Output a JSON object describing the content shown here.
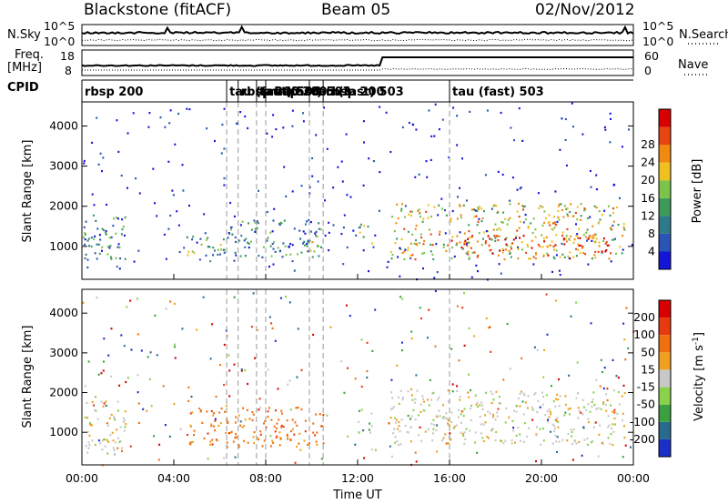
{
  "header": {
    "station": "Blackstone (fitACF)",
    "beam": "Beam 05",
    "date": "02/Nov/2012"
  },
  "top_panels": {
    "nsky_label": "N.Sky",
    "nsky_ticks": [
      "10^5",
      "10^0"
    ],
    "nsearch_label": "N.Search",
    "nsearch_ticks": [
      "10^5",
      "10^0"
    ],
    "freq_label_line1": "Freq.",
    "freq_label_line2": "[MHz]",
    "freq_ticks": [
      "18",
      "8"
    ],
    "nave_label": "Nave",
    "nave_ticks": [
      "60",
      "0"
    ],
    "cpid_label": "CPID"
  },
  "cpid_segments": [
    {
      "start_h": 0.0,
      "label": "rbsp 200"
    },
    {
      "start_h": 6.3,
      "label": "tau (fast) 503"
    },
    {
      "start_h": 6.8,
      "label": "rbsp 200"
    },
    {
      "start_h": 7.6,
      "label": "tau (fast) 503"
    },
    {
      "start_h": 8.0,
      "label": "rbsp 200"
    },
    {
      "start_h": 9.9,
      "label": "tau (fast) 503"
    },
    {
      "start_h": 10.5,
      "label": "rbsp 200"
    },
    {
      "start_h": 16.0,
      "label": "tau (fast) 503"
    }
  ],
  "time_axis": {
    "label": "Time UT",
    "ticks": [
      "00:00",
      "04:00",
      "08:00",
      "12:00",
      "16:00",
      "20:00",
      "00:00"
    ]
  },
  "chart_data": [
    {
      "type": "heatmap",
      "quantity": "Power",
      "ylabel": "Slant Range [km]",
      "ylim": [
        180,
        4600
      ],
      "yticks": [
        1000,
        2000,
        3000,
        4000
      ],
      "xlim_hours": [
        0,
        24
      ],
      "colorbar": {
        "label": "Power [dB]",
        "ticks": [
          "4",
          "8",
          "12",
          "16",
          "20",
          "24",
          "28"
        ],
        "colors": [
          "#1515d8",
          "#2a55b5",
          "#2f7a8a",
          "#3f9a5a",
          "#7cc34a",
          "#f0c020",
          "#f08a10",
          "#e84510",
          "#d80000"
        ]
      },
      "scatter_regions": [
        {
          "t0": 0.0,
          "t1": 1.9,
          "r0": 450,
          "r1": 1800,
          "level": 0.3
        },
        {
          "t0": 4.4,
          "t1": 6.3,
          "r0": 650,
          "r1": 1300,
          "level": 0.4
        },
        {
          "t0": 6.3,
          "t1": 10.5,
          "r0": 750,
          "r1": 1700,
          "level": 0.3
        },
        {
          "t0": 9.8,
          "t1": 10.5,
          "r0": 850,
          "r1": 1300,
          "level": 0.5
        },
        {
          "t0": 12.0,
          "t1": 12.6,
          "r0": 1000,
          "r1": 1600,
          "level": 0.5
        },
        {
          "t0": 13.4,
          "t1": 23.6,
          "r0": 700,
          "r1": 2100,
          "level": 0.6
        },
        {
          "t0": 16.0,
          "t1": 23.0,
          "r0": 800,
          "r1": 1300,
          "level": 0.85
        }
      ]
    },
    {
      "type": "heatmap",
      "quantity": "Velocity",
      "ylabel": "Slant Range [km]",
      "ylim": [
        180,
        4600
      ],
      "yticks": [
        1000,
        2000,
        3000,
        4000
      ],
      "xlim_hours": [
        0,
        24
      ],
      "colorbar": {
        "label": "Velocity [m s^-1]",
        "ticks": [
          "200",
          "100",
          "50",
          "15",
          "-15",
          "-50",
          "-100",
          "-200"
        ],
        "colors": [
          "#1a2fc8",
          "#2a6a8f",
          "#3aa040",
          "#8ad24a",
          "#c8c8c8",
          "#f0a020",
          "#f07010",
          "#e83a10",
          "#d80000"
        ]
      },
      "scatter_regions": [
        {
          "t0": 0.0,
          "t1": 1.9,
          "r0": 450,
          "r1": 1800,
          "class": "gray"
        },
        {
          "t0": 4.4,
          "t1": 10.5,
          "r0": 650,
          "r1": 1650,
          "class": "orange"
        },
        {
          "t0": 12.0,
          "t1": 12.6,
          "r0": 1000,
          "r1": 1600,
          "class": "green"
        },
        {
          "t0": 13.4,
          "t1": 23.6,
          "r0": 700,
          "r1": 2100,
          "class": "gray"
        }
      ]
    }
  ]
}
